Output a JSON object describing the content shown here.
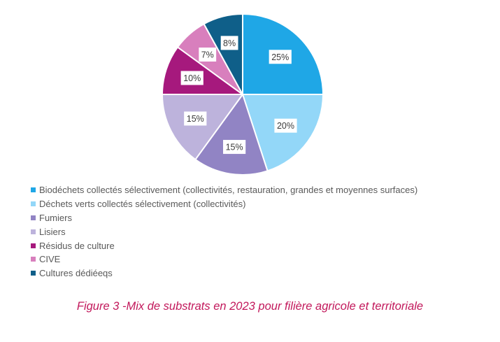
{
  "chart_data": {
    "type": "pie",
    "categories": [
      "Biodéchets collectés sélectivement (collectivités, restauration, grandes et moyennes surfaces)",
      "Déchets verts collectés sélectivement (collectivités)",
      "Fumiers",
      "Lisiers",
      "Résidus de culture",
      "CIVE",
      "Cultures dédiéeqs"
    ],
    "values": [
      25,
      20,
      15,
      15,
      10,
      7,
      8
    ],
    "data_labels": [
      "25%",
      "20%",
      "15%",
      "15%",
      "10%",
      "7%",
      "8%"
    ],
    "colors": [
      "#1fa7e6",
      "#93d7f8",
      "#9184c4",
      "#bdb3dc",
      "#a6197d",
      "#d87fbd",
      "#0f5f89"
    ],
    "legend_position": "bottom-left",
    "start_angle_deg": 0,
    "direction": "clockwise"
  },
  "caption": "Figure 3 -Mix de substrats en 2023 pour filière agricole et territoriale"
}
